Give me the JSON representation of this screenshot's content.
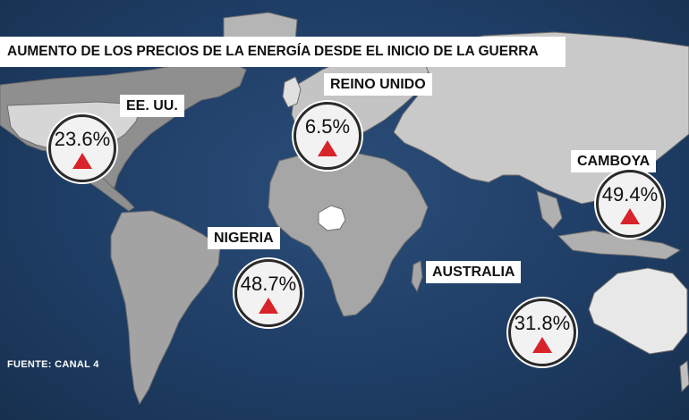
{
  "title": "AUMENTO DE LOS PRECIOS DE LA ENERGÍA DESDE EL INICIO DE LA GUERRA",
  "source": "FUENTE: CANAL 4",
  "colors": {
    "ocean": "#1f3e66",
    "land": "#9a9a9a",
    "highlight_land": "#ffffff",
    "increase_marker": "#d8232a"
  },
  "countries": [
    {
      "id": "usa",
      "label": "EE. UU.",
      "value": "23.6%",
      "trend_icon": "up-triangle-icon"
    },
    {
      "id": "uk",
      "label": "REINO UNIDO",
      "value": "6.5%",
      "trend_icon": "up-triangle-icon"
    },
    {
      "id": "cambodia",
      "label": "CAMBOYA",
      "value": "49.4%",
      "trend_icon": "up-triangle-icon"
    },
    {
      "id": "nigeria",
      "label": "NIGERIA",
      "value": "48.7%",
      "trend_icon": "up-triangle-icon"
    },
    {
      "id": "australia",
      "label": "AUSTRALIA",
      "value": "31.8%",
      "trend_icon": "up-triangle-icon"
    }
  ]
}
